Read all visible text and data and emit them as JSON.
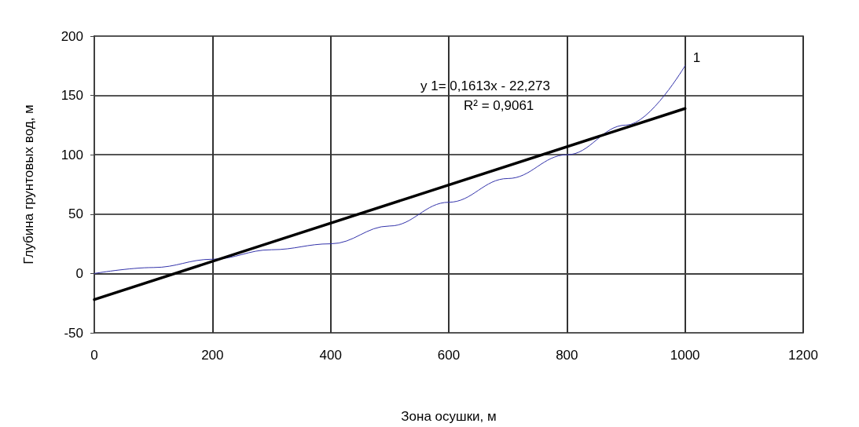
{
  "chart_data": {
    "type": "line",
    "xlabel": "Зона осушки, м",
    "ylabel": "Глубина грунтовых вод, м",
    "xlim": [
      0,
      1200
    ],
    "xticks": [
      0,
      200,
      400,
      600,
      800,
      1000,
      1200
    ],
    "ylim": [
      -50,
      200
    ],
    "yticks": [
      -50,
      0,
      50,
      100,
      150,
      200
    ],
    "grid": true,
    "legend": false,
    "marker": "none",
    "annotations": [
      "y 1= 0,1613x - 22,273",
      "R² = 0,9061"
    ],
    "series": [
      {
        "name": "1",
        "color": "#3333aa",
        "x": [
          0,
          100,
          200,
          300,
          400,
          500,
          600,
          700,
          800,
          900,
          1000
        ],
        "values": [
          0,
          5,
          12,
          20,
          25,
          40,
          60,
          80,
          100,
          125,
          175
        ]
      },
      {
        "type": "line",
        "color": "#000000",
        "x": [
          0,
          1000
        ],
        "values": [
          -22,
          139
        ]
      }
    ]
  }
}
